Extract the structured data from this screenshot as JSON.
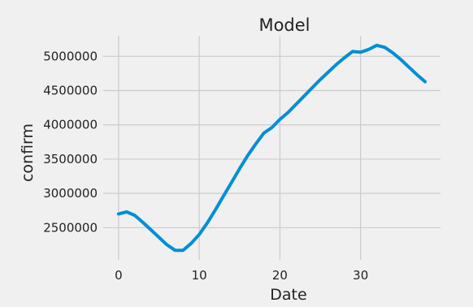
{
  "chart_data": {
    "type": "line",
    "title": "Model",
    "xlabel": "Date",
    "ylabel": "confirm",
    "xlim": [
      -1.9,
      39.9
    ],
    "ylim": [
      2030000,
      5300000
    ],
    "xticks": [
      0,
      10,
      20,
      30
    ],
    "xtick_labels": [
      "0",
      "10",
      "20",
      "30"
    ],
    "yticks": [
      2500000,
      3000000,
      3500000,
      4000000,
      4500000,
      5000000
    ],
    "ytick_labels": [
      "2500000",
      "3000000",
      "3500000",
      "4000000",
      "4500000",
      "5000000"
    ],
    "grid": true,
    "legend": false,
    "colors": {
      "line": "#008fd5",
      "grid": "#cbcbcb",
      "background": "#f0f0f0"
    },
    "series": [
      {
        "x": [
          0,
          1,
          2,
          3,
          4,
          5,
          6,
          7,
          8,
          9,
          10,
          11,
          12,
          13,
          14,
          15,
          16,
          17,
          18,
          19,
          20,
          21,
          22,
          23,
          24,
          25,
          26,
          27,
          28,
          29,
          30,
          31,
          32,
          33,
          34,
          35,
          36,
          37,
          38
        ],
        "values": [
          2700000,
          2730000,
          2680000,
          2580000,
          2470000,
          2360000,
          2250000,
          2170000,
          2170000,
          2270000,
          2400000,
          2570000,
          2760000,
          2960000,
          3160000,
          3360000,
          3550000,
          3720000,
          3880000,
          3960000,
          4080000,
          4180000,
          4300000,
          4420000,
          4540000,
          4660000,
          4770000,
          4880000,
          4980000,
          5070000,
          5060000,
          5100000,
          5160000,
          5130000,
          5050000,
          4950000,
          4840000,
          4730000,
          4630000
        ]
      }
    ]
  }
}
